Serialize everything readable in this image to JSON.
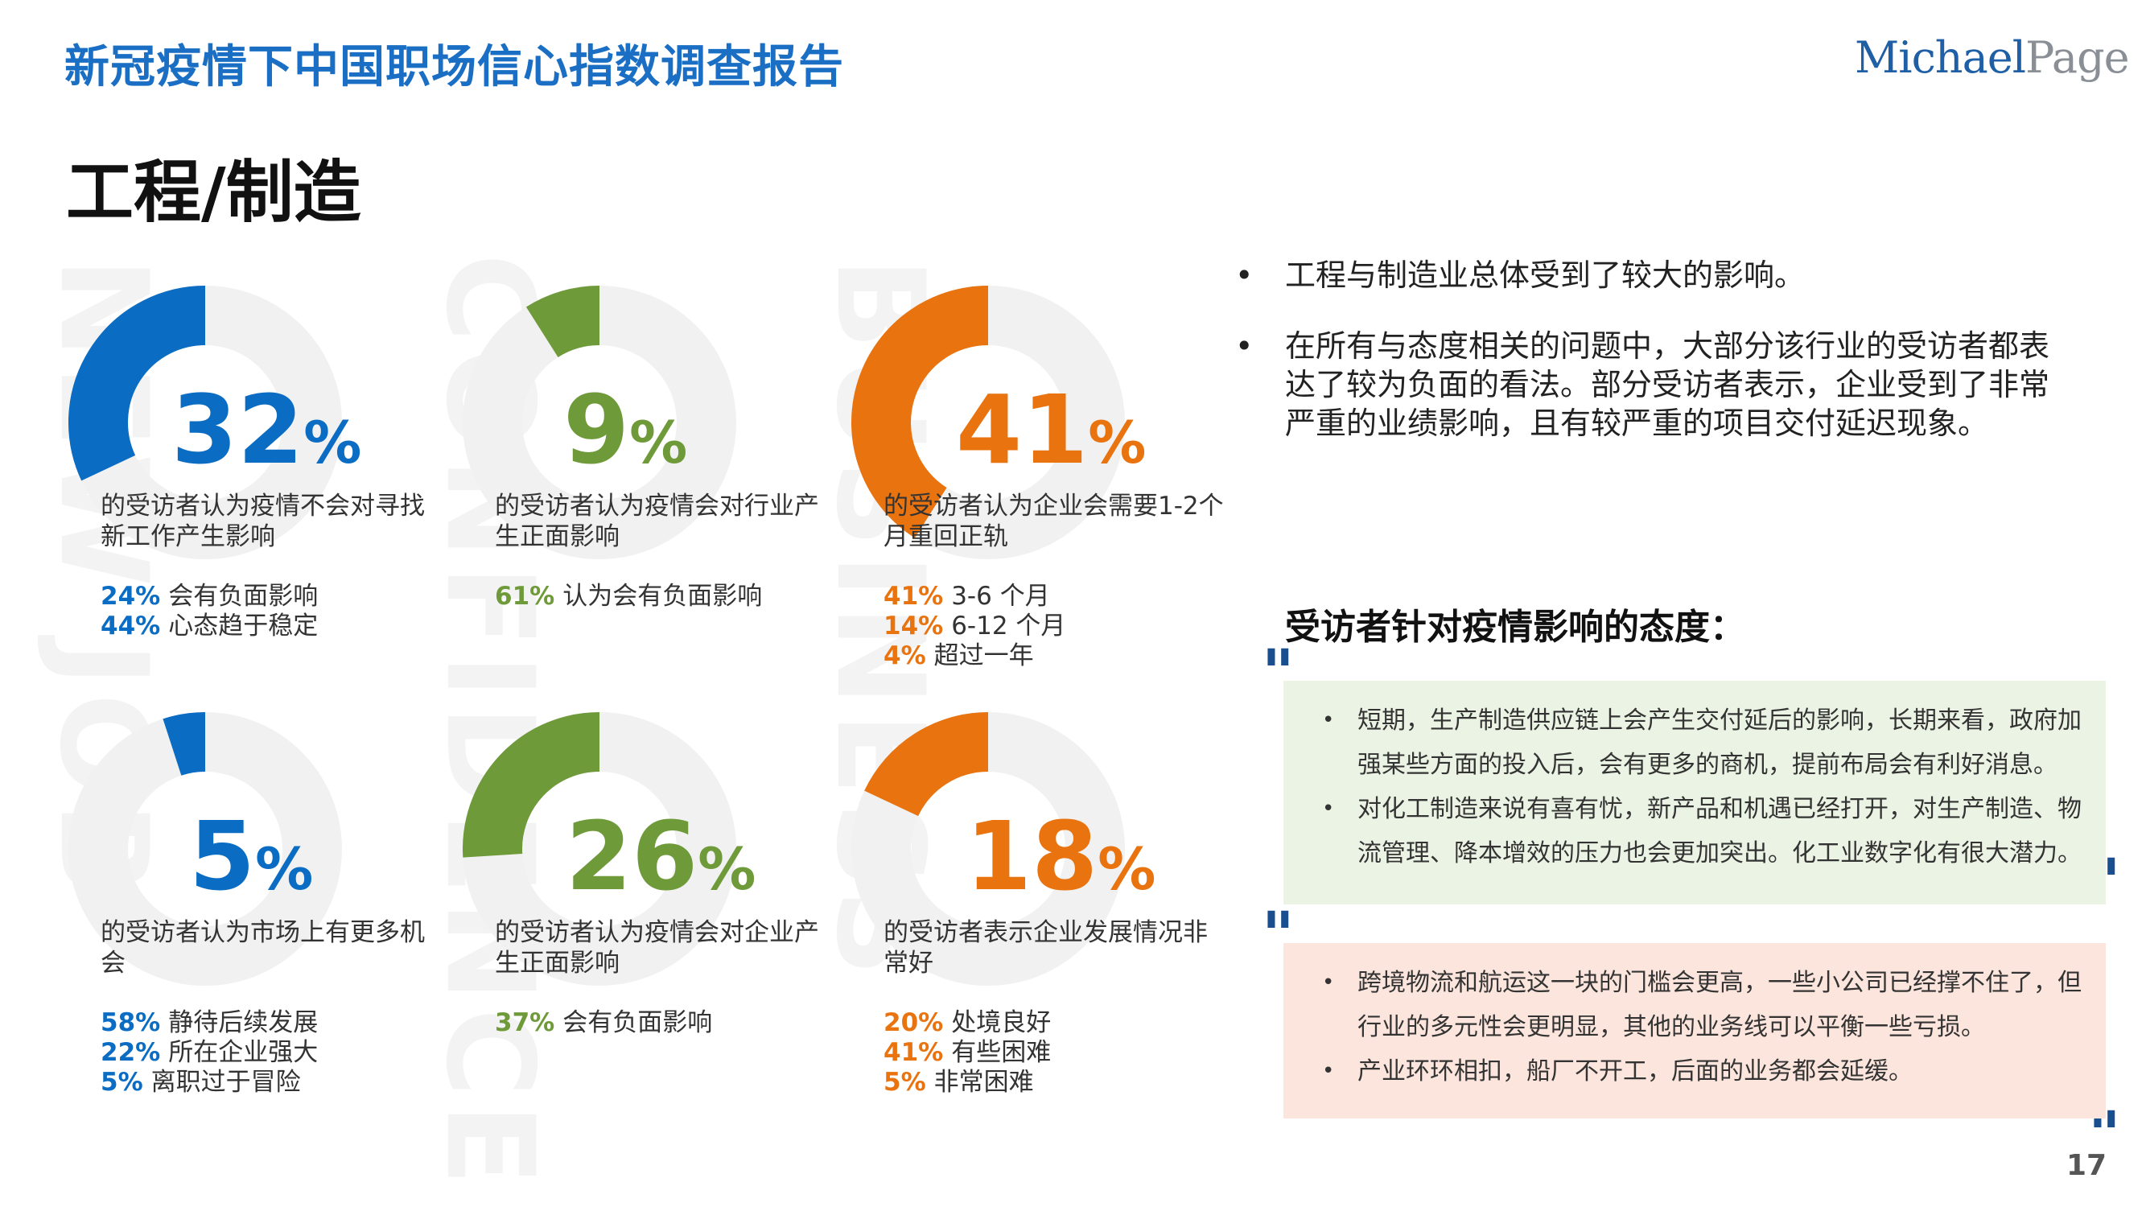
{
  "header": {
    "report_title": "新冠疫情下中国职场信心指数调查报告",
    "logo_part1": "Michael",
    "logo_part2": "Page"
  },
  "section_title": "工程/制造",
  "watermarks": [
    "NEW JOB",
    "CONFIDENCE",
    "BUSINESS"
  ],
  "colors": {
    "blue": "#0a6cc2",
    "green": "#6f9a3a",
    "orange": "#e8730f",
    "track": "#eeeeee"
  },
  "stats": [
    {
      "value": 32,
      "value_text": "32",
      "color": "blue",
      "desc": "的受访者认为疫情不会对寻找新工作产生影响",
      "subs": [
        {
          "v": "24%",
          "t": "会有负面影响"
        },
        {
          "v": "44%",
          "t": "心态趋于稳定"
        }
      ]
    },
    {
      "value": 9,
      "value_text": "9",
      "color": "green",
      "desc": "的受访者认为疫情会对行业产生正面影响",
      "subs": [
        {
          "v": "61%",
          "t": "认为会有负面影响"
        }
      ]
    },
    {
      "value": 41,
      "value_text": "41",
      "color": "orange",
      "desc": "的受访者认为企业会需要1-2个月重回正轨",
      "subs": [
        {
          "v": "41%",
          "t": "3-6 个月"
        },
        {
          "v": "14%",
          "t": "6-12 个月"
        },
        {
          "v": "4%",
          "t": "超过一年"
        }
      ]
    },
    {
      "value": 5,
      "value_text": "5",
      "color": "blue",
      "desc": "的受访者认为市场上有更多机会",
      "subs": [
        {
          "v": "58%",
          "t": "静待后续发展"
        },
        {
          "v": "22%",
          "t": "所在企业强大"
        },
        {
          "v": "5%",
          "t": "离职过于冒险"
        }
      ]
    },
    {
      "value": 26,
      "value_text": "26",
      "color": "green",
      "desc": "的受访者认为疫情会对企业产生正面影响",
      "subs": [
        {
          "v": "37%",
          "t": "会有负面影响"
        }
      ]
    },
    {
      "value": 18,
      "value_text": "18",
      "color": "orange",
      "desc": "的受访者表示企业发展情况非常好",
      "subs": [
        {
          "v": "20%",
          "t": "处境良好"
        },
        {
          "v": "41%",
          "t": "有些困难"
        },
        {
          "v": "5%",
          "t": "非常困难"
        }
      ]
    }
  ],
  "pct_symbol": "%",
  "bullets": [
    "工程与制造业总体受到了较大的影响。",
    "在所有与态度相关的问题中，大部分该行业的受访者都表达了较为负面的看法。部分受访者表示，企业受到了非常严重的业绩影响，且有较严重的项目交付延迟现象。"
  ],
  "attitude_title": "受访者针对疫情影响的态度：",
  "quote_mark": "\"",
  "quotes_green": [
    "短期，生产制造供应链上会产生交付延后的影响，长期来看，政府加强某些方面的投入后，会有更多的商机，提前布局会有利好消息。",
    "对化工制造来说有喜有忧，新产品和机遇已经打开，对生产制造、物流管理、降本增效的压力也会更加突出。化工业数字化有很大潜力。"
  ],
  "quotes_pink": [
    "跨境物流和航运这一块的门槛会更高，一些小公司已经撑不住了，但行业的多元性会更明显，其他的业务线可以平衡一些亏损。",
    "产业环环相扣，船厂不开工，后面的业务都会延缓。"
  ],
  "page_number": "17"
}
